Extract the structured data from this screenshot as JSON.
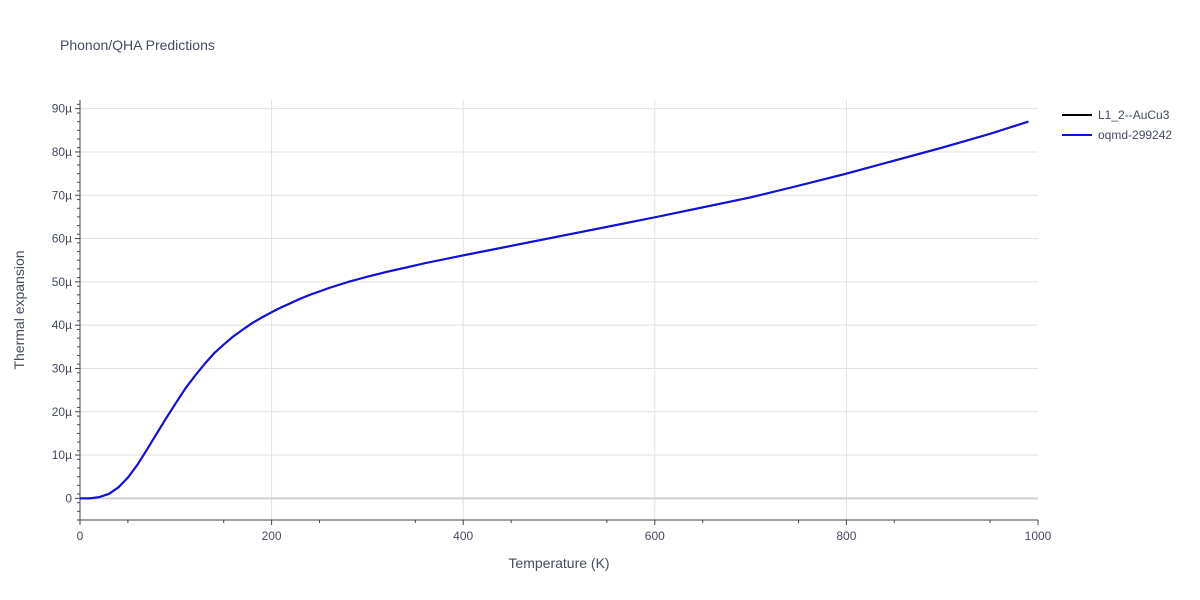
{
  "chart_data": {
    "type": "line",
    "title": "Phonon/QHA Predictions",
    "xlabel": "Temperature (K)",
    "ylabel": "Thermal expansion",
    "xlim": [
      0,
      1000
    ],
    "ylim": [
      -5,
      92
    ],
    "y_unit_suffix": "µ",
    "x_ticks": [
      0,
      200,
      400,
      600,
      800,
      1000
    ],
    "x_tick_labels": [
      "0",
      "200",
      "400",
      "600",
      "800",
      "1000"
    ],
    "y_ticks": [
      0,
      10,
      20,
      30,
      40,
      50,
      60,
      70,
      80,
      90
    ],
    "y_tick_labels": [
      "0",
      "10µ",
      "20µ",
      "30µ",
      "40µ",
      "50µ",
      "60µ",
      "70µ",
      "80µ",
      "90µ"
    ],
    "grid": true,
    "legend_position": "top-right",
    "series": [
      {
        "name": "L1_2--AuCu3",
        "color": "#000000",
        "x": [
          0,
          10,
          20,
          30,
          40,
          50,
          60,
          70,
          80,
          90,
          100,
          110,
          120,
          130,
          140,
          150,
          160,
          170,
          180,
          190,
          200,
          210,
          220,
          230,
          240,
          250,
          260,
          270,
          280,
          290,
          300,
          320,
          340,
          360,
          380,
          400,
          450,
          500,
          550,
          600,
          650,
          700,
          750,
          800,
          850,
          900,
          950,
          990
        ],
        "y": [
          0,
          0,
          0.3,
          1.0,
          2.5,
          4.8,
          7.8,
          11.3,
          14.9,
          18.5,
          22.0,
          25.4,
          28.3,
          31.0,
          33.5,
          35.5,
          37.4,
          39.0,
          40.5,
          41.8,
          43.0,
          44.1,
          45.1,
          46.1,
          47.0,
          47.8,
          48.6,
          49.3,
          50.0,
          50.6,
          51.2,
          52.3,
          53.3,
          54.3,
          55.2,
          56.1,
          58.3,
          60.5,
          62.7,
          64.9,
          67.2,
          69.5,
          72.2,
          75.0,
          78.0,
          81.0,
          84.2,
          87.0
        ]
      },
      {
        "name": "oqmd-299242",
        "color": "#1010e0",
        "x": [
          0,
          10,
          20,
          30,
          40,
          50,
          60,
          70,
          80,
          90,
          100,
          110,
          120,
          130,
          140,
          150,
          160,
          170,
          180,
          190,
          200,
          210,
          220,
          230,
          240,
          250,
          260,
          270,
          280,
          290,
          300,
          320,
          340,
          360,
          380,
          400,
          450,
          500,
          550,
          600,
          650,
          700,
          750,
          800,
          850,
          900,
          950,
          990
        ],
        "y": [
          0,
          0,
          0.3,
          1.0,
          2.5,
          4.8,
          7.8,
          11.3,
          14.9,
          18.5,
          22.0,
          25.4,
          28.3,
          31.0,
          33.5,
          35.5,
          37.4,
          39.0,
          40.5,
          41.8,
          43.0,
          44.1,
          45.1,
          46.1,
          47.0,
          47.8,
          48.6,
          49.3,
          50.0,
          50.6,
          51.2,
          52.3,
          53.3,
          54.3,
          55.2,
          56.1,
          58.3,
          60.5,
          62.7,
          64.9,
          67.2,
          69.5,
          72.2,
          75.0,
          78.0,
          81.0,
          84.2,
          87.0
        ]
      }
    ]
  }
}
